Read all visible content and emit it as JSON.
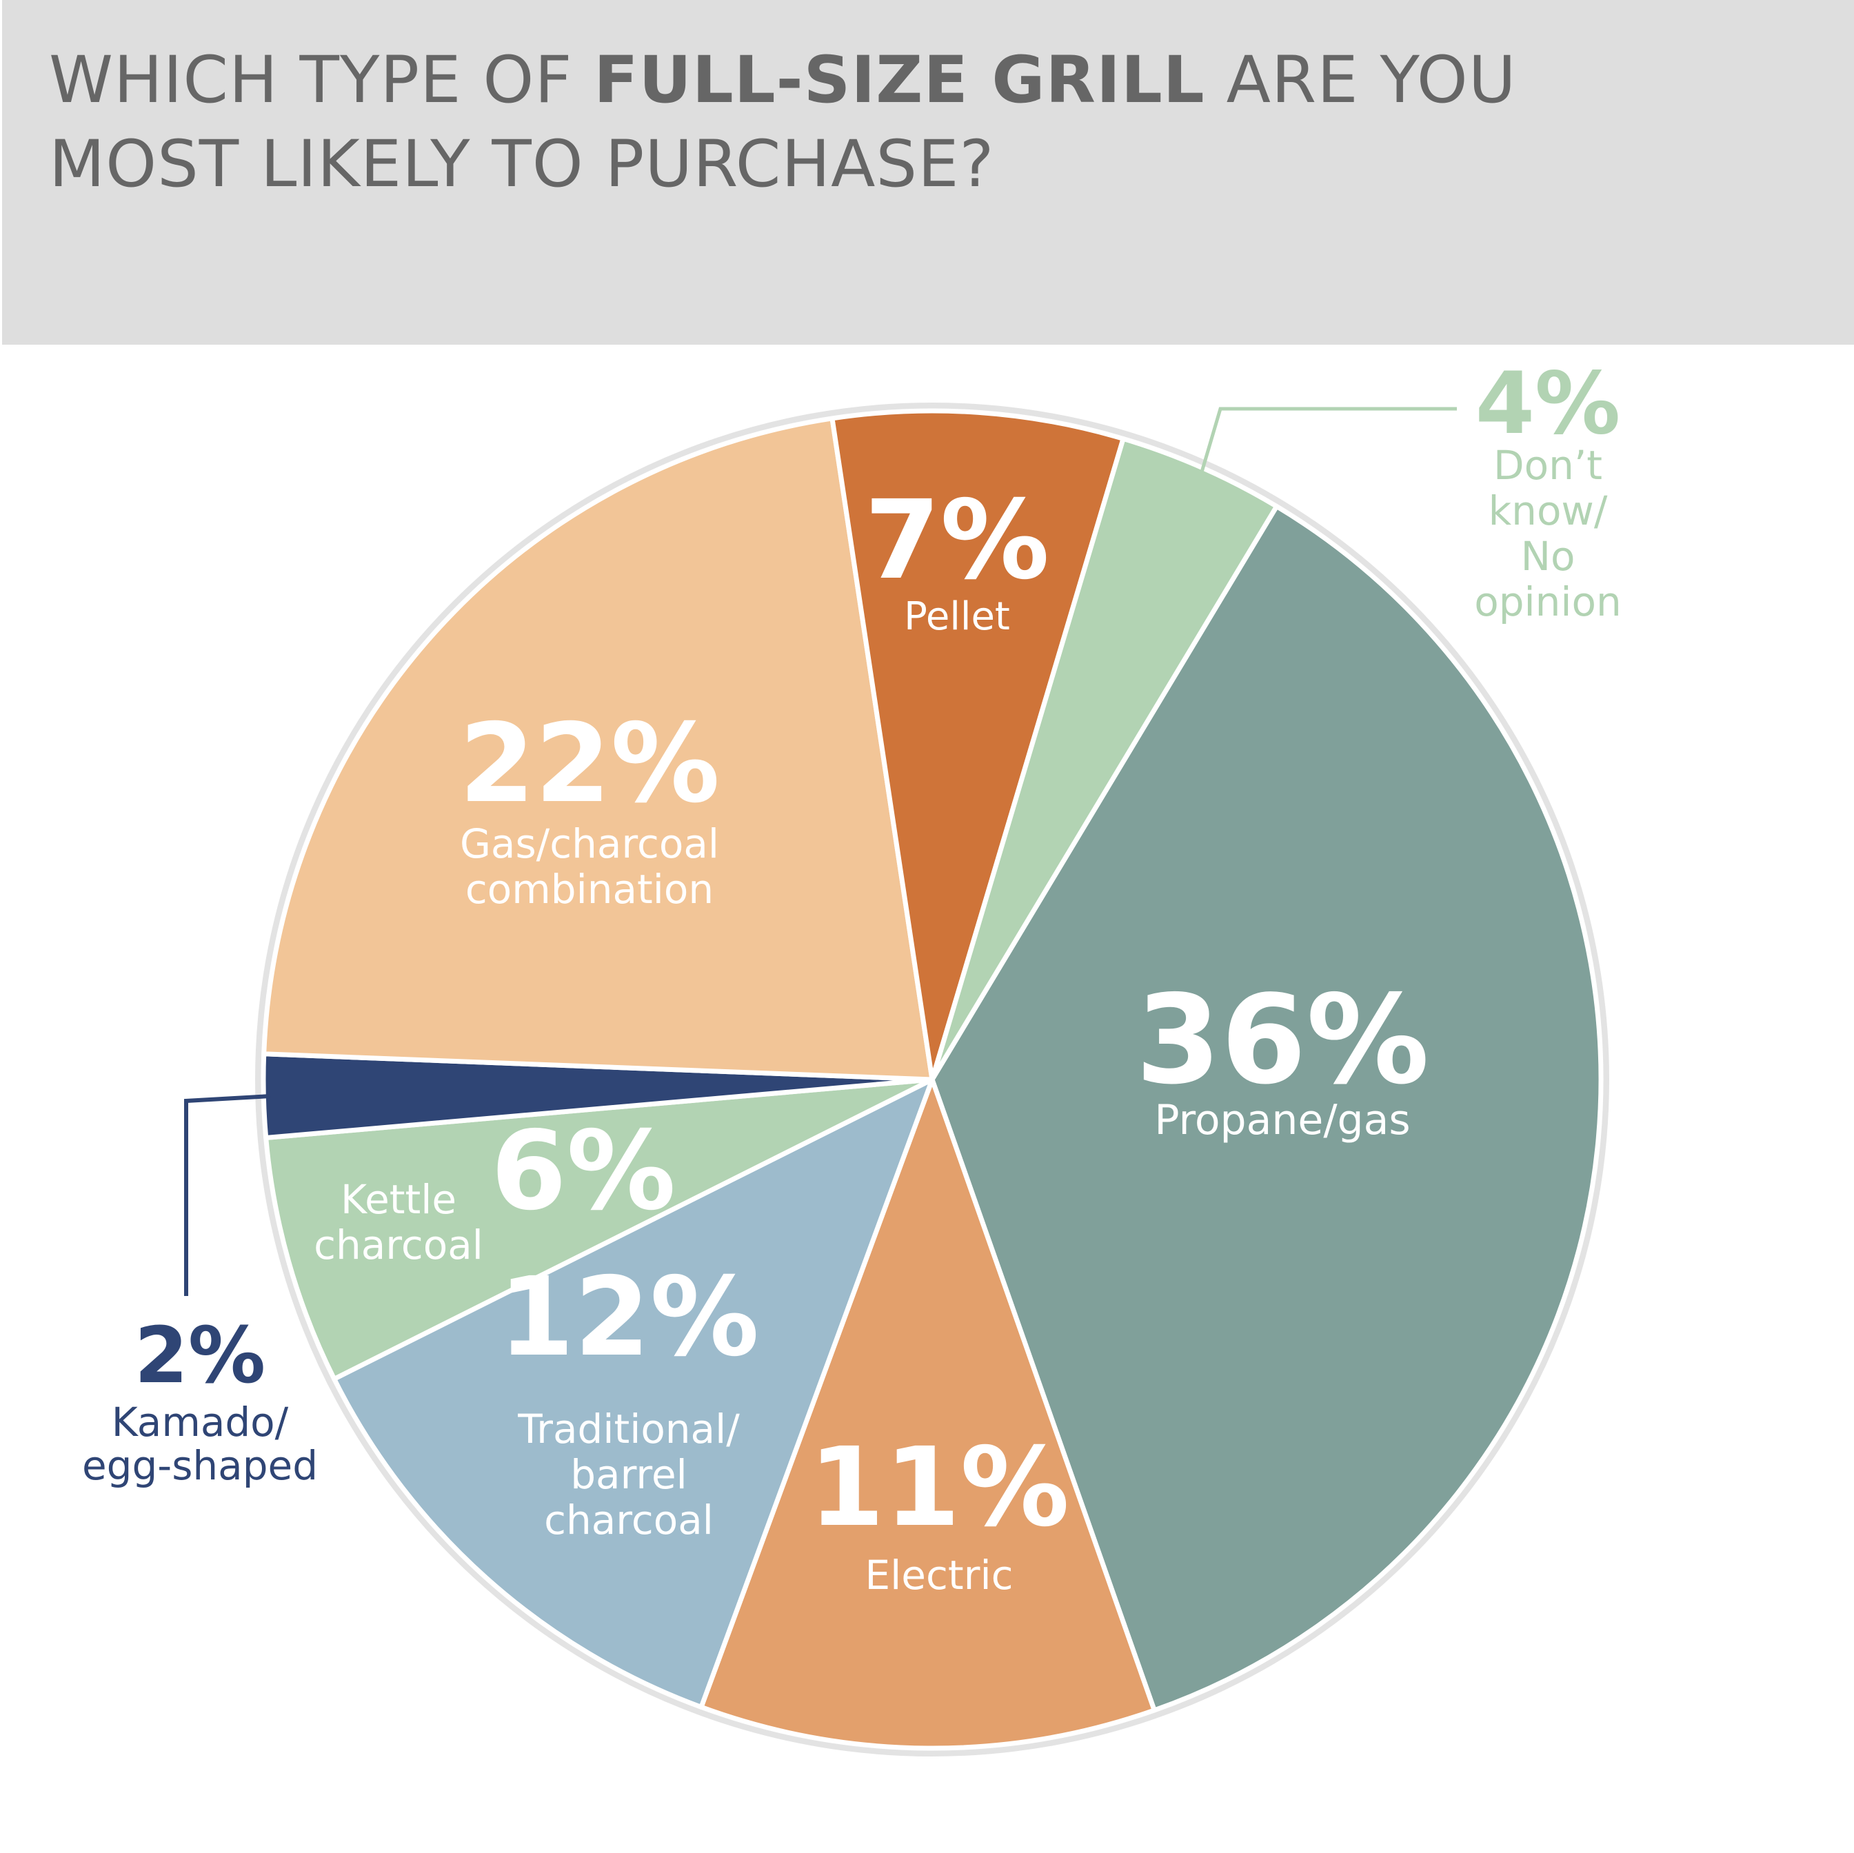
{
  "title": {
    "line1_start": "WHICH TYPE OF ",
    "line1_bold": "FULL-SIZE GRILL",
    "line1_end": " ARE YOU",
    "line2": "MOST LIKELY TO PURCHASE?"
  },
  "colors": {
    "header_bg": "#dedede",
    "title_text": "#666666",
    "slice_border": "#ffffff",
    "outer_ring": "#e3e3e3",
    "leader_dont_know": "#b2d3b3",
    "leader_kamado": "#2f4575"
  },
  "chart_data": {
    "type": "pie",
    "title": "WHICH TYPE OF FULL-SIZE GRILL ARE YOU MOST LIKELY TO PURCHASE?",
    "unit": "%",
    "slices": [
      {
        "id": "propane",
        "value": 36,
        "pct_label": "36%",
        "label_lines": [
          "Propane/gas"
        ],
        "color": "#80a09a",
        "text_color": "#ffffff"
      },
      {
        "id": "electric",
        "value": 11,
        "pct_label": "11%",
        "label_lines": [
          "Electric"
        ],
        "color": "#e3a06c",
        "text_color": "#ffffff"
      },
      {
        "id": "traditional",
        "value": 12,
        "pct_label": "12%",
        "label_lines": [
          "Traditional/",
          "barrel",
          "charcoal"
        ],
        "color": "#9dbbcc",
        "text_color": "#ffffff"
      },
      {
        "id": "kettle",
        "value": 6,
        "pct_label": "6%",
        "label_lines": [
          "Kettle",
          "charcoal"
        ],
        "color": "#b2d3b3",
        "text_color": "#ffffff"
      },
      {
        "id": "kamado",
        "value": 2,
        "pct_label": "2%",
        "label_lines": [
          "Kamado/",
          "egg-shaped"
        ],
        "color": "#2f4575",
        "text_color": "#2f4575"
      },
      {
        "id": "gascharcoal",
        "value": 22,
        "pct_label": "22%",
        "label_lines": [
          "Gas/charcoal",
          "combination"
        ],
        "color": "#f2c597",
        "text_color": "#ffffff"
      },
      {
        "id": "pellet",
        "value": 7,
        "pct_label": "7%",
        "label_lines": [
          "Pellet"
        ],
        "color": "#cf7439",
        "text_color": "#ffffff"
      },
      {
        "id": "dontknow",
        "value": 4,
        "pct_label": "4%",
        "label_lines": [
          "Don’t",
          "know/",
          "No",
          "opinion"
        ],
        "color": "#b2d3b3",
        "text_color": "#b2d3b3"
      }
    ]
  }
}
